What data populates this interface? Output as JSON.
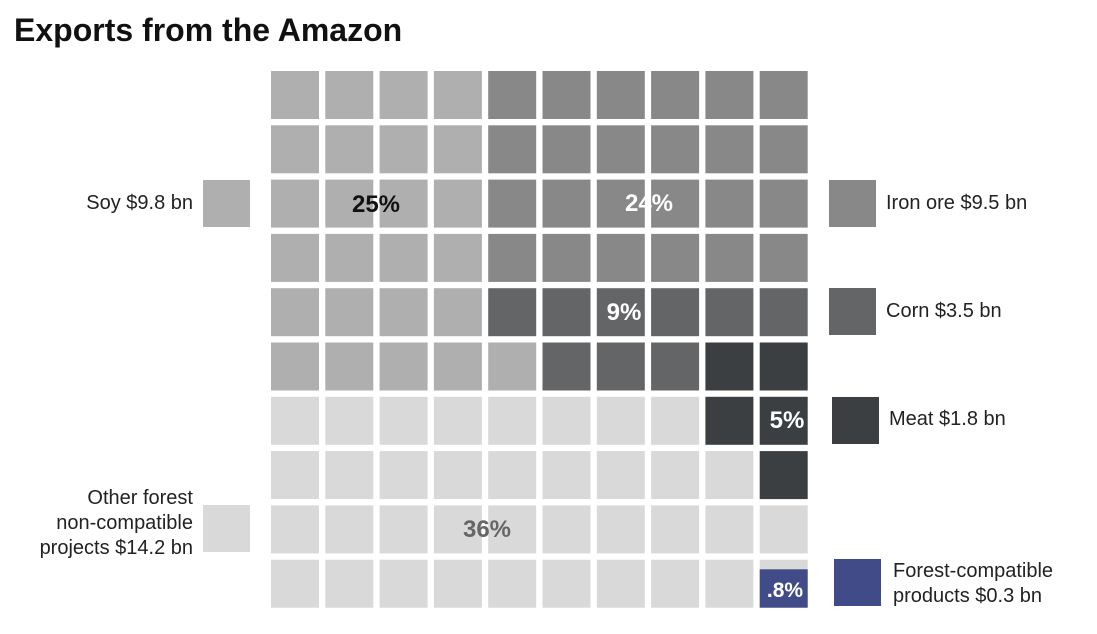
{
  "title": "Exports from the Amazon",
  "chart_data": {
    "type": "waffle",
    "grid": {
      "rows": 10,
      "cols": 10
    },
    "title": "Exports from the Amazon",
    "categories": [
      {
        "key": "soy",
        "label": "Soy $9.8 bn",
        "value_bn": 9.8,
        "cells": 25,
        "pct_label": "25%",
        "color": "#afafaf",
        "label_color": "#111111"
      },
      {
        "key": "iron",
        "label": "Iron ore $9.5 bn",
        "value_bn": 9.5,
        "cells": 24,
        "pct_label": "24%",
        "color": "#888888",
        "label_color": "#ffffff"
      },
      {
        "key": "corn",
        "label": "Corn $3.5 bn",
        "value_bn": 3.5,
        "cells": 9,
        "pct_label": "9%",
        "color": "#646567",
        "label_color": "#ffffff"
      },
      {
        "key": "meat",
        "label": "Meat $1.8 bn",
        "value_bn": 1.8,
        "cells": 5,
        "pct_label": "5%",
        "color": "#3c3f42",
        "label_color": "#ffffff"
      },
      {
        "key": "other",
        "label": "Other forest\nnon-compatible\nprojects $14.2 bn",
        "value_bn": 14.2,
        "cells": 36,
        "pct_label": "36%",
        "color": "#d9d9d9",
        "label_color": "#666666"
      },
      {
        "key": "forest",
        "label": "Forest-compatible\nproducts $0.3 bn",
        "value_bn": 0.3,
        "cells": 0.8,
        "pct_label": ".8%",
        "color": "#414b88",
        "label_color": "#ffffff"
      }
    ]
  }
}
